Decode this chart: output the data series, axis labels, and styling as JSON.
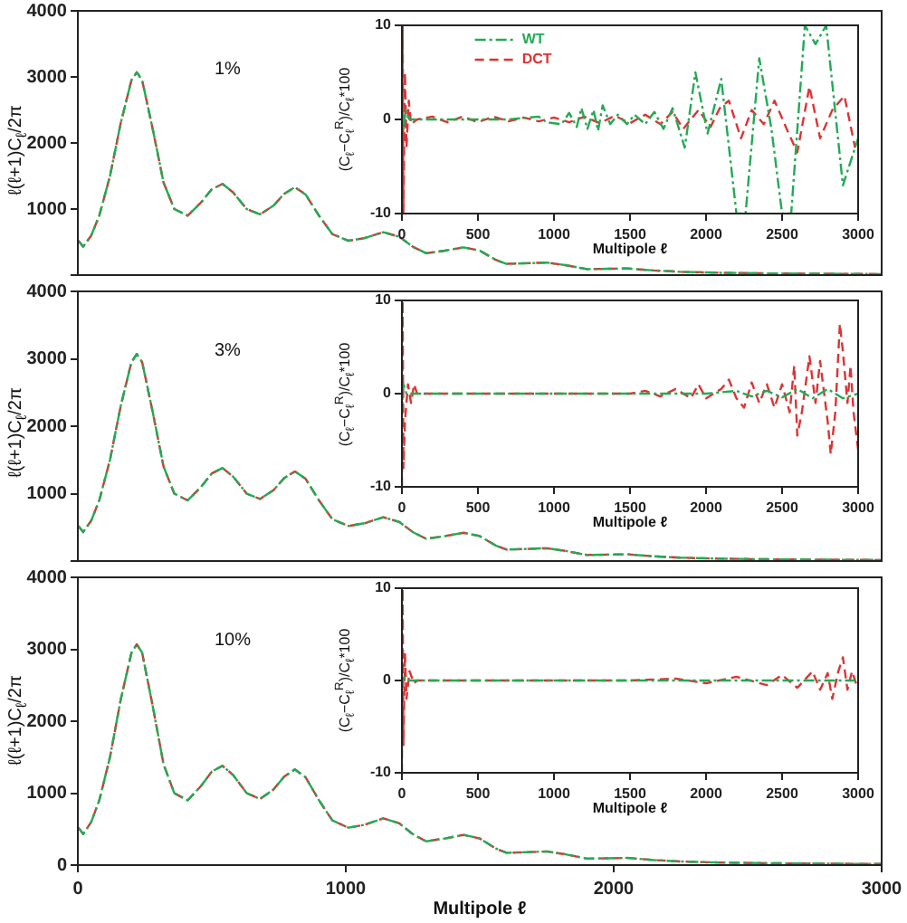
{
  "chart_data": [
    {
      "type": "line",
      "ylabel": "ℓ(ℓ+1)C$_{ℓ}$/2π",
      "annotations": [
        "1%"
      ],
      "xlim": [
        0,
        3000
      ],
      "ylim": [
        0,
        4000
      ],
      "xticks": [
        0,
        1000,
        2000,
        3000
      ],
      "yticks": [
        {
          "value": 0,
          "label": null
        },
        1000,
        2000,
        3000,
        4000
      ],
      "tick_labels": "y",
      "x": [
        2,
        20,
        50,
        80,
        120,
        160,
        200,
        220,
        240,
        280,
        320,
        360,
        410,
        460,
        500,
        540,
        580,
        630,
        680,
        730,
        770,
        810,
        850,
        900,
        950,
        1010,
        1070,
        1140,
        1200,
        1250,
        1300,
        1370,
        1440,
        1500,
        1560,
        1600,
        1680,
        1750,
        1820,
        1900,
        1980,
        2050,
        2150,
        2250,
        2400,
        2600,
        2800,
        3000
      ],
      "series": [
        {
          "color": "#22aa55",
          "line_style": "dotted",
          "values": [
            520,
            430,
            600,
            900,
            1500,
            2300,
            2950,
            3070,
            2950,
            2200,
            1400,
            1000,
            900,
            1100,
            1300,
            1380,
            1250,
            1000,
            920,
            1050,
            1230,
            1330,
            1220,
            900,
            620,
            520,
            560,
            650,
            580,
            430,
            330,
            370,
            420,
            370,
            230,
            170,
            180,
            190,
            150,
            90,
            95,
            100,
            70,
            50,
            35,
            25,
            20,
            15
          ]
        },
        {
          "color": "#dd3333",
          "line_style": "dashed",
          "values": [
            520,
            430,
            600,
            900,
            1500,
            2300,
            2950,
            3070,
            2950,
            2200,
            1400,
            1000,
            900,
            1100,
            1300,
            1380,
            1250,
            1000,
            920,
            1050,
            1230,
            1330,
            1220,
            900,
            620,
            520,
            560,
            650,
            580,
            430,
            330,
            370,
            420,
            370,
            230,
            170,
            180,
            190,
            150,
            90,
            95,
            100,
            70,
            50,
            35,
            25,
            20,
            15
          ]
        }
      ]
    },
    {
      "type": "line",
      "xlabel": "Multipole ℓ",
      "ylabel": "(C$_{ℓ}$−C$_{ℓ}$$^{R}$)/C$_{ℓ}$*100",
      "xlim": [
        0,
        3000
      ],
      "ylim": [
        -10,
        10
      ],
      "xticks": [
        0,
        500,
        1000,
        1500,
        2000,
        2500,
        3000
      ],
      "yticks": [
        -10,
        0,
        10
      ],
      "legend": "top left",
      "series": [
        {
          "name": "WT",
          "color": "#22aa55",
          "line_style": "dotted",
          "x": [
            0,
            10,
            25,
            50,
            100,
            300,
            500,
            700,
            900,
            950,
            1050,
            1100,
            1150,
            1180,
            1220,
            1260,
            1290,
            1320,
            1370,
            1420,
            1480,
            1530,
            1600,
            1660,
            1720,
            1780,
            1860,
            1930,
            2010,
            2100,
            2200,
            2260,
            2350,
            2430,
            2500,
            2560,
            2650,
            2720,
            2790,
            2900,
            3000
          ],
          "values": [
            3,
            -1,
            1,
            0,
            0,
            0,
            0,
            0,
            0.3,
            -0.3,
            -0.5,
            0.7,
            -0.8,
            1.2,
            -1,
            1,
            -1.2,
            1.5,
            -0.5,
            0.5,
            -0.5,
            0.5,
            -0.5,
            0.8,
            -1,
            1.2,
            -3,
            5,
            -1.5,
            4.3,
            -10,
            -10,
            6.5,
            -1,
            -10,
            -10,
            10,
            8,
            10,
            -7,
            -2
          ]
        },
        {
          "name": "DCT",
          "color": "#dd3333",
          "line_style": "dashed",
          "x": [
            0,
            5,
            10,
            20,
            30,
            45,
            60,
            100,
            200,
            300,
            400,
            500,
            600,
            700,
            800,
            900,
            1000,
            1100,
            1200,
            1300,
            1400,
            1500,
            1600,
            1700,
            1780,
            1850,
            1950,
            2030,
            2090,
            2150,
            2230,
            2300,
            2380,
            2450,
            2530,
            2600,
            2680,
            2750,
            2830,
            2910,
            2980
          ],
          "values": [
            -10,
            10,
            -10,
            5,
            -3,
            2,
            -0.5,
            0,
            0.3,
            -0.3,
            0.3,
            -0.3,
            0.3,
            -0.2,
            0.2,
            -0.2,
            0.2,
            -0.3,
            0.3,
            -0.4,
            0.4,
            -0.4,
            0.5,
            -0.5,
            0.8,
            -1,
            1,
            -0.8,
            1.2,
            2,
            -2,
            1,
            -0.5,
            2,
            -1,
            -3.5,
            3.5,
            -2,
            1,
            2.5,
            -3
          ]
        }
      ]
    },
    {
      "type": "line",
      "ylabel": "ℓ(ℓ+1)C$_{ℓ}$/2π",
      "annotations": [
        "3%"
      ],
      "xlim": [
        0,
        3000
      ],
      "ylim": [
        0,
        4000
      ],
      "xticks": [
        0,
        1000,
        2000,
        3000
      ],
      "yticks": [
        {
          "value": 0,
          "label": null
        },
        1000,
        2000,
        3000,
        4000
      ],
      "tick_labels": "y",
      "x": [
        2,
        20,
        50,
        80,
        120,
        160,
        200,
        220,
        240,
        280,
        320,
        360,
        410,
        460,
        500,
        540,
        580,
        630,
        680,
        730,
        770,
        810,
        850,
        900,
        950,
        1010,
        1070,
        1140,
        1200,
        1250,
        1300,
        1370,
        1440,
        1500,
        1560,
        1600,
        1680,
        1750,
        1820,
        1900,
        1980,
        2050,
        2150,
        2250,
        2400,
        2600,
        2800,
        3000
      ],
      "series": [
        {
          "color": "#22aa55",
          "line_style": "dotted",
          "values": [
            520,
            430,
            600,
            900,
            1500,
            2300,
            2950,
            3070,
            2950,
            2200,
            1400,
            1000,
            900,
            1100,
            1300,
            1380,
            1250,
            1000,
            920,
            1050,
            1230,
            1330,
            1220,
            900,
            620,
            520,
            560,
            650,
            580,
            430,
            330,
            370,
            420,
            370,
            230,
            170,
            180,
            190,
            150,
            90,
            95,
            100,
            70,
            50,
            35,
            25,
            20,
            15
          ]
        },
        {
          "color": "#dd3333",
          "line_style": "dashed",
          "values": [
            520,
            430,
            600,
            900,
            1500,
            2300,
            2950,
            3070,
            2950,
            2200,
            1400,
            1000,
            900,
            1100,
            1300,
            1380,
            1250,
            1000,
            920,
            1050,
            1230,
            1330,
            1220,
            900,
            620,
            520,
            560,
            650,
            580,
            430,
            330,
            370,
            420,
            370,
            230,
            170,
            180,
            190,
            150,
            90,
            95,
            100,
            70,
            50,
            35,
            25,
            20,
            15
          ]
        }
      ]
    },
    {
      "type": "line",
      "xlabel": "Multipole ℓ",
      "ylabel": "(C$_{ℓ}$−C$_{ℓ}$$^{R}$)/C$_{ℓ}$*100",
      "xlim": [
        0,
        3000
      ],
      "ylim": [
        -10,
        10
      ],
      "xticks": [
        0,
        500,
        1000,
        1500,
        2000,
        2500,
        3000
      ],
      "yticks": [
        -10,
        0,
        10
      ],
      "series": [
        {
          "color": "#22aa55",
          "line_style": "dotted",
          "x": [
            0,
            10,
            30,
            100,
            1000,
            2000,
            2200,
            2300,
            2400,
            2500,
            2600,
            2700,
            2800,
            2900,
            3000
          ],
          "values": [
            -2,
            1,
            0,
            0,
            0,
            0,
            0.3,
            -0.3,
            0.3,
            -0.4,
            0.5,
            -0.5,
            0.5,
            -0.5,
            0
          ]
        },
        {
          "color": "#dd3333",
          "line_style": "dashed",
          "x": [
            0,
            5,
            10,
            20,
            40,
            60,
            80,
            100,
            300,
            500,
            700,
            1000,
            1200,
            1500,
            1600,
            1700,
            1800,
            1900,
            1950,
            2000,
            2100,
            2150,
            2200,
            2250,
            2300,
            2350,
            2400,
            2450,
            2500,
            2550,
            2580,
            2600,
            2630,
            2680,
            2720,
            2750,
            2800,
            2820,
            2850,
            2880,
            2900,
            2930,
            2950,
            2970,
            3000
          ],
          "values": [
            -10,
            10,
            -8,
            -3,
            1,
            -1,
            1,
            0,
            0,
            0,
            0,
            0,
            0,
            0,
            0.3,
            -0.3,
            0.5,
            -0.5,
            1,
            -0.5,
            0.5,
            1.5,
            -0.5,
            -1.5,
            1.2,
            -1,
            1,
            -1.5,
            1,
            -2,
            3,
            -4.5,
            -2,
            4,
            -1,
            3.5,
            -3,
            -6.5,
            -2,
            7.5,
            4.5,
            -1,
            3,
            -2,
            -6
          ]
        }
      ]
    },
    {
      "type": "line",
      "xlabel": "Multipole ℓ",
      "ylabel": "ℓ(ℓ+1)C$_{ℓ}$/2π",
      "annotations": [
        "10%"
      ],
      "xlim": [
        0,
        3000
      ],
      "ylim": [
        0,
        4000
      ],
      "xticks": [
        0,
        1000,
        2000,
        3000
      ],
      "yticks": [
        0,
        1000,
        2000,
        3000,
        4000
      ],
      "x": [
        2,
        20,
        50,
        80,
        120,
        160,
        200,
        220,
        240,
        280,
        320,
        360,
        410,
        460,
        500,
        540,
        580,
        630,
        680,
        730,
        770,
        810,
        850,
        900,
        950,
        1010,
        1070,
        1140,
        1200,
        1250,
        1300,
        1370,
        1440,
        1500,
        1560,
        1600,
        1680,
        1750,
        1820,
        1900,
        1980,
        2050,
        2150,
        2250,
        2400,
        2600,
        2800,
        3000
      ],
      "series": [
        {
          "color": "#22aa55",
          "line_style": "dotted",
          "values": [
            520,
            430,
            600,
            900,
            1500,
            2300,
            2950,
            3070,
            2950,
            2200,
            1400,
            1000,
            900,
            1100,
            1300,
            1380,
            1250,
            1000,
            920,
            1050,
            1230,
            1330,
            1220,
            900,
            620,
            520,
            560,
            650,
            580,
            430,
            330,
            370,
            420,
            370,
            230,
            170,
            180,
            190,
            150,
            90,
            95,
            100,
            70,
            50,
            35,
            25,
            20,
            15
          ]
        },
        {
          "color": "#dd3333",
          "line_style": "dashed",
          "values": [
            520,
            430,
            600,
            900,
            1500,
            2300,
            2950,
            3070,
            2950,
            2200,
            1400,
            1000,
            900,
            1100,
            1300,
            1380,
            1250,
            1000,
            920,
            1050,
            1230,
            1330,
            1220,
            900,
            620,
            520,
            560,
            650,
            580,
            430,
            330,
            370,
            420,
            370,
            230,
            170,
            180,
            190,
            150,
            90,
            95,
            100,
            70,
            50,
            35,
            25,
            20,
            15
          ]
        }
      ]
    },
    {
      "type": "line",
      "xlabel": "Multipole ℓ",
      "ylabel": "(C$_{ℓ}$−C$_{ℓ}$$^{R}$)/C$_{ℓ}$*100",
      "xlim": [
        0,
        3000
      ],
      "ylim": [
        -10,
        10
      ],
      "xticks": [
        0,
        500,
        1000,
        1500,
        2000,
        2500,
        3000
      ],
      "yticks": [
        -10,
        0,
        10
      ],
      "series": [
        {
          "color": "#22aa55",
          "line_style": "dotted",
          "x": [
            0,
            10,
            30,
            1000,
            2000,
            3000
          ],
          "values": [
            -1,
            0.5,
            0,
            0,
            0,
            0
          ]
        },
        {
          "color": "#dd3333",
          "line_style": "dashed",
          "x": [
            0,
            5,
            10,
            20,
            30,
            50,
            80,
            100,
            500,
            1000,
            1500,
            1800,
            2000,
            2200,
            2400,
            2500,
            2600,
            2700,
            2750,
            2800,
            2830,
            2870,
            2900,
            2930,
            2960,
            3000
          ],
          "values": [
            -10,
            10,
            -7,
            3,
            -2,
            1,
            -0.3,
            0,
            0,
            0,
            0,
            0.2,
            -0.3,
            0.4,
            -0.5,
            0.6,
            -0.8,
            1,
            -1,
            0.8,
            -2,
            1,
            2.5,
            -1,
            1,
            -1
          ]
        }
      ]
    }
  ]
}
